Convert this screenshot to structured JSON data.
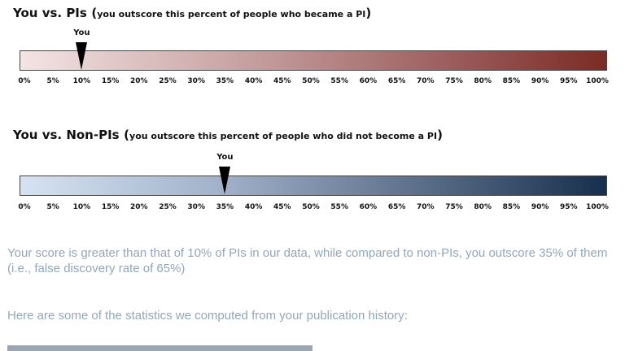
{
  "pi_section": {
    "title": "You vs. PIs",
    "paren_open": "(",
    "subtitle": "you outscore this percent of people who became a PI",
    "paren_close": ")",
    "marker_label": "You",
    "percentile": 10
  },
  "nonpi_section": {
    "title": "You vs. Non-PIs",
    "paren_open": "(",
    "subtitle": "you outscore this percent of people who did not become a PI",
    "paren_close": ")",
    "marker_label": "You",
    "percentile": 35
  },
  "scale_ticks": [
    "0%",
    "5%",
    "10%",
    "15%",
    "20%",
    "25%",
    "30%",
    "35%",
    "40%",
    "45%",
    "50%",
    "55%",
    "60%",
    "65%",
    "70%",
    "75%",
    "80%",
    "85%",
    "90%",
    "95%",
    "100%"
  ],
  "summary_text": "Your score is greater than that of 10% of PIs in our data, while compared to non-PIs, you outscore 35% of them (i.e., false discovery rate of 65%)",
  "statistics_intro": "Here are some of the statistics we computed from your publication history:",
  "colors": {
    "pi_gradient": [
      "#f4e4e4",
      "#7b2b24"
    ],
    "nonpi_gradient": [
      "#d6e3f3",
      "#172f4d"
    ],
    "summary_text": "#93a6b9"
  }
}
